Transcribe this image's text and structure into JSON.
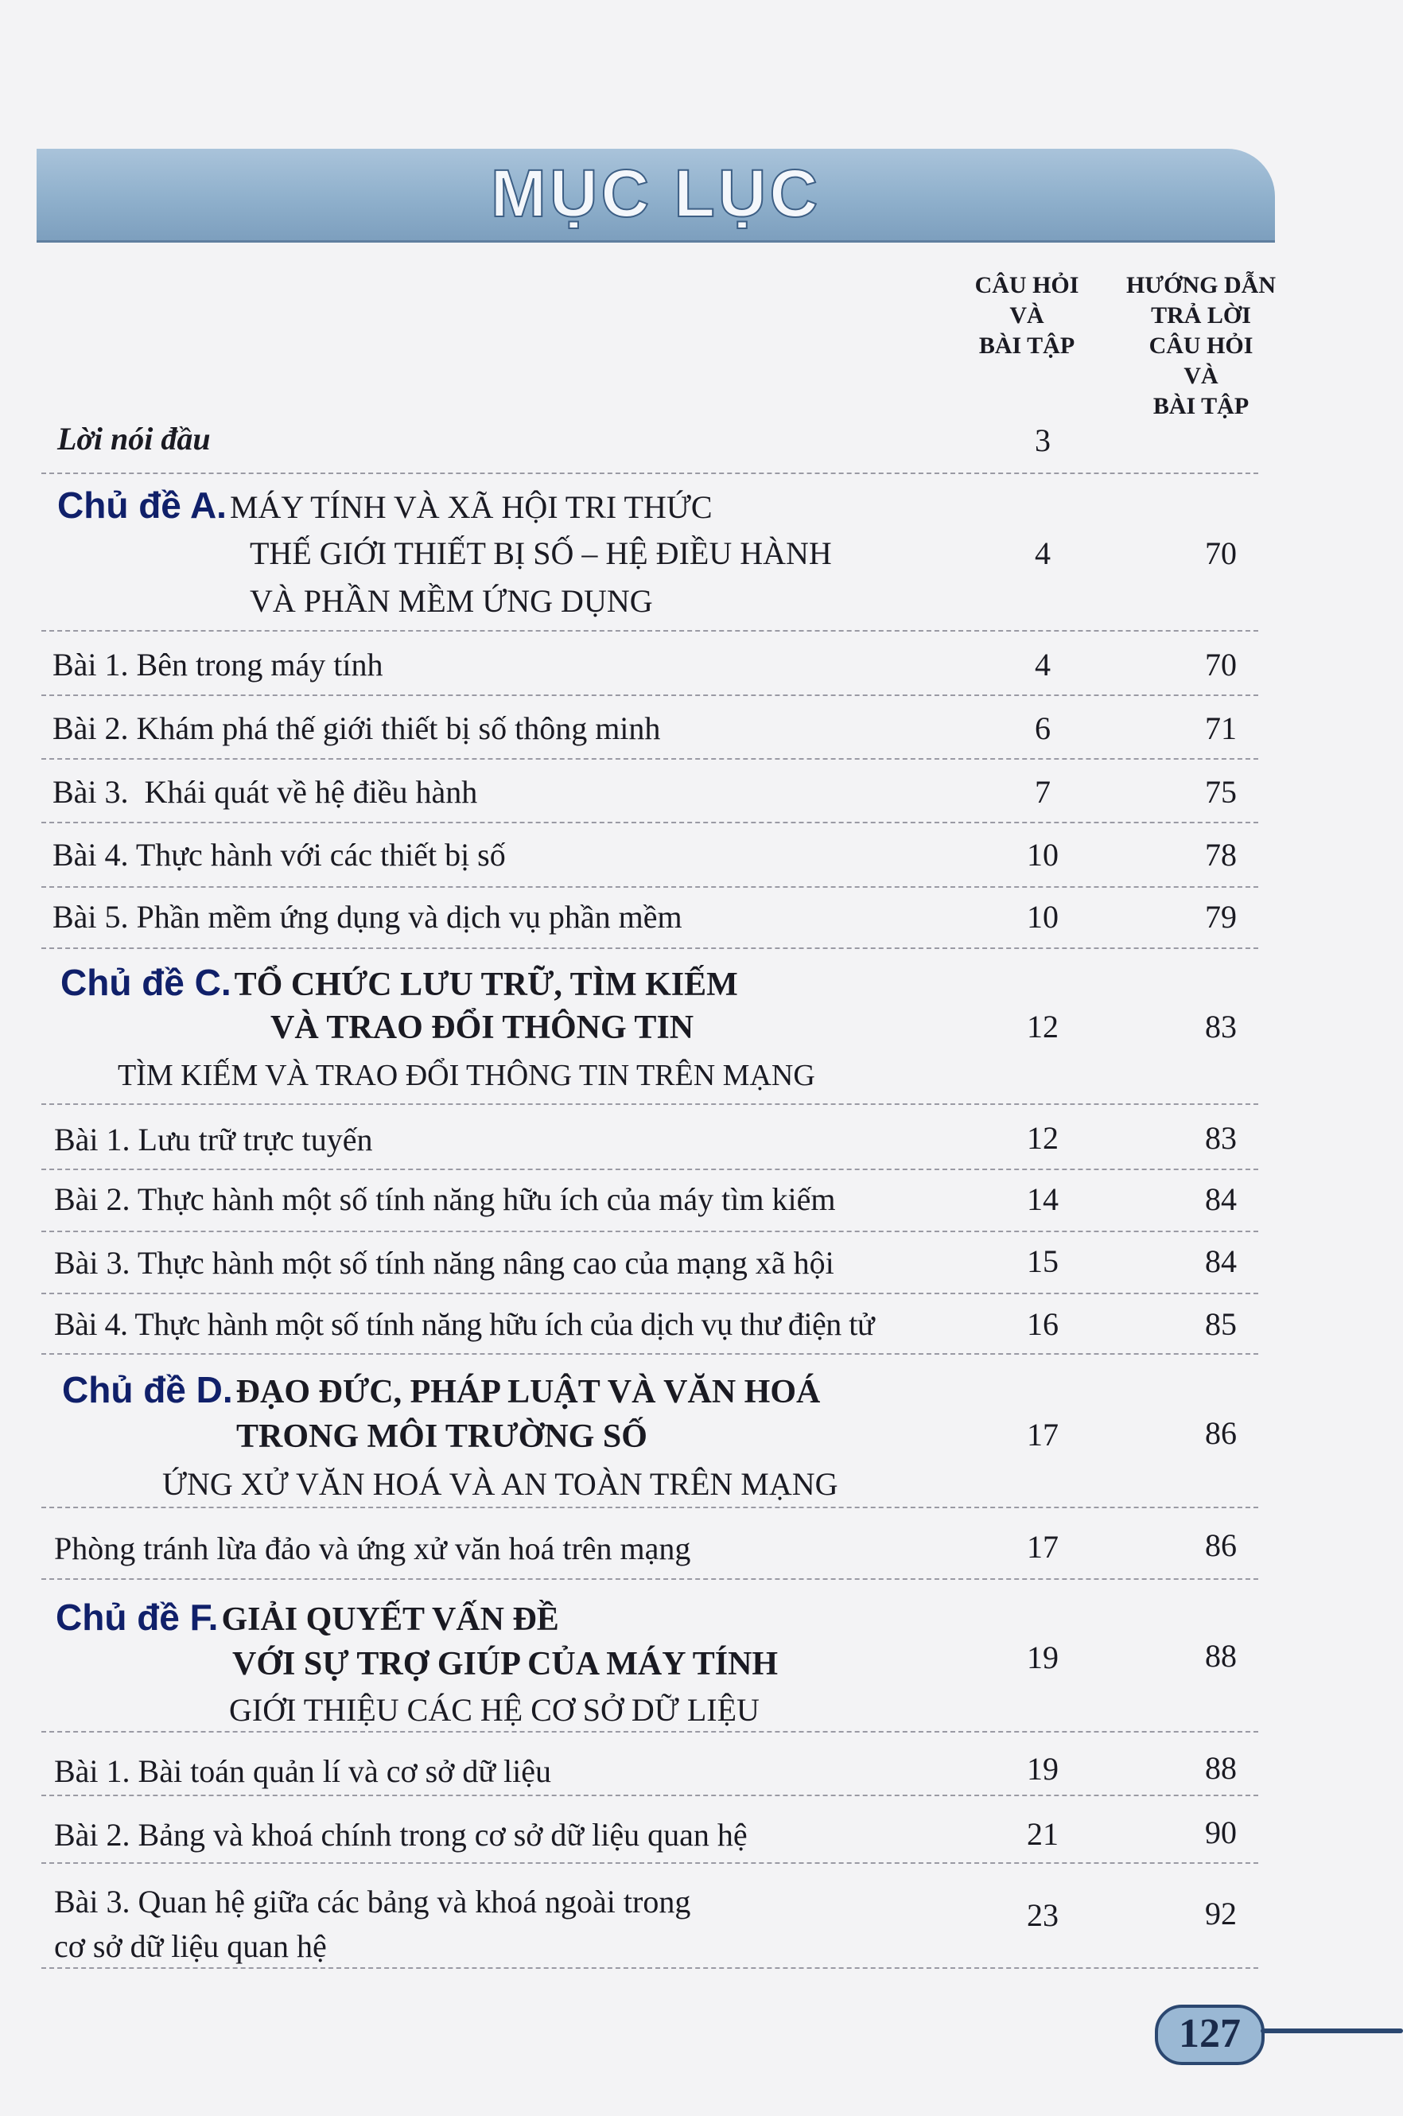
{
  "header": {
    "title": "MỤC LỤC"
  },
  "columns": {
    "questions": [
      "CÂU HỎI",
      "VÀ",
      "BÀI TẬP"
    ],
    "answers": [
      "HƯỚNG DẪN",
      "TRẢ LỜI",
      "CÂU HỎI",
      "VÀ",
      "BÀI TẬP"
    ]
  },
  "preface": {
    "label": "Lời nói đầu",
    "q": "3"
  },
  "topicA": {
    "prefix": "Chủ đề A.",
    "lines": [
      "MÁY TÍNH VÀ XÃ HỘI TRI THỨC",
      "THẾ GIỚI THIẾT BỊ SỐ – HỆ ĐIỀU HÀNH",
      "VÀ PHẦN MỀM ỨNG DỤNG"
    ],
    "q": "4",
    "a": "70",
    "lessons": [
      {
        "label": "Bài 1. Bên trong máy tính",
        "q": "4",
        "a": "70"
      },
      {
        "label": "Bài 2. Khám phá thế giới thiết bị số thông minh",
        "q": "6",
        "a": "71"
      },
      {
        "label": "Bài 3.  Khái quát về hệ điều hành",
        "q": "7",
        "a": "75"
      },
      {
        "label": "Bài 4. Thực hành với các thiết bị số",
        "q": "10",
        "a": "78"
      },
      {
        "label": "Bài 5. Phần mềm ứng dụng và dịch vụ phần mềm",
        "q": "10",
        "a": "79"
      }
    ]
  },
  "topicC": {
    "prefix": "Chủ đề C.",
    "lines": [
      "TỔ CHỨC LƯU TRỮ, TÌM KIẾM",
      "VÀ TRAO ĐỔI THÔNG TIN",
      "TÌM KIẾM VÀ TRAO ĐỔI THÔNG TIN TRÊN MẠNG"
    ],
    "q": "12",
    "a": "83",
    "lessons": [
      {
        "label": "Bài 1. Lưu trữ trực tuyến",
        "q": "12",
        "a": "83"
      },
      {
        "label": "Bài 2. Thực hành một số tính năng hữu ích của máy tìm kiếm",
        "q": "14",
        "a": "84"
      },
      {
        "label": "Bài 3. Thực hành một số tính năng nâng cao của mạng xã hội",
        "q": "15",
        "a": "84"
      },
      {
        "label": "Bài 4. Thực hành một số tính năng hữu ích của dịch vụ thư điện tử",
        "q": "16",
        "a": "85"
      }
    ]
  },
  "topicD": {
    "prefix": "Chủ đề D.",
    "lines": [
      "ĐẠO ĐỨC, PHÁP LUẬT VÀ VĂN HOÁ",
      "TRONG MÔI TRƯỜNG SỐ",
      "ỨNG XỬ VĂN HOÁ VÀ AN TOÀN TRÊN MẠNG"
    ],
    "q": "17",
    "a": "86",
    "lessons": [
      {
        "label": "Phòng tránh lừa đảo và ứng xử văn hoá trên mạng",
        "q": "17",
        "a": "86"
      }
    ]
  },
  "topicF": {
    "prefix": "Chủ đề F.",
    "lines": [
      "GIẢI QUYẾT VẤN ĐỀ",
      "VỚI SỰ TRỢ GIÚP CỦA MÁY TÍNH",
      "GIỚI THIỆU CÁC HỆ CƠ SỞ DỮ LIỆU"
    ],
    "q": "19",
    "a": "88",
    "lessons": [
      {
        "label": "Bài 1. Bài toán quản lí và cơ sở dữ liệu",
        "q": "19",
        "a": "88"
      },
      {
        "label": "Bài 2. Bảng và khoá chính trong cơ sở dữ liệu quan hệ",
        "q": "21",
        "a": "90"
      },
      {
        "label": "Bài 3. Quan hệ giữa các bảng và khoá ngoài trong",
        "label2": "cơ sở dữ liệu quan hệ",
        "q": "23",
        "a": "92"
      }
    ]
  },
  "footer": {
    "page_number": "127"
  },
  "colors": {
    "banner": "#8fb0cc",
    "topic_prefix": "#10206a",
    "paper": "#f3f3f5"
  }
}
